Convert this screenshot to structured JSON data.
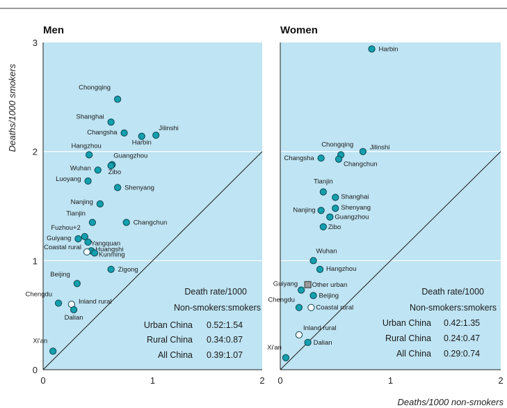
{
  "colors": {
    "panel_bg": "#bfe4f3",
    "marker_fill": "#139fae",
    "marker_stroke": "#0c4650",
    "open_marker_fill": "#ffffff",
    "square_marker_fill": "#9a9a9a",
    "grid": "#ffffff",
    "diagonal": "#1a1a1a",
    "rule": "#333333"
  },
  "chart_data": {
    "type": "scatter",
    "ylabel": "Deaths/1000 smokers",
    "xlabel": "Deaths/1000 non-smokers",
    "xlim": [
      0,
      2
    ],
    "ylim": [
      0,
      3
    ],
    "x_ticks": [
      "0",
      "1",
      "2"
    ],
    "y_ticks": [
      "0",
      "1",
      "2",
      "3"
    ],
    "grid": "horizontal",
    "reference_line": "y = x",
    "panels": [
      {
        "title": "Men",
        "points": [
          {
            "name": "Chongqing",
            "x": 0.68,
            "y": 2.48,
            "marker": "circle"
          },
          {
            "name": "Shanghai",
            "x": 0.62,
            "y": 2.27,
            "marker": "circle"
          },
          {
            "name": "Changsha",
            "x": 0.74,
            "y": 2.17,
            "marker": "circle"
          },
          {
            "name": "Harbin",
            "x": 0.9,
            "y": 2.14,
            "marker": "circle"
          },
          {
            "name": "Jilinshi",
            "x": 1.03,
            "y": 2.15,
            "marker": "circle"
          },
          {
            "name": "Hangzhou",
            "x": 0.42,
            "y": 1.97,
            "marker": "circle"
          },
          {
            "name": "Guangzhou",
            "x": 0.63,
            "y": 1.88,
            "marker": "circle"
          },
          {
            "name": "Wuhan",
            "x": 0.5,
            "y": 1.83,
            "marker": "circle"
          },
          {
            "name": "Zibo",
            "x": 0.62,
            "y": 1.87,
            "marker": "circle"
          },
          {
            "name": "Luoyang",
            "x": 0.41,
            "y": 1.73,
            "marker": "circle"
          },
          {
            "name": "Shenyang",
            "x": 0.68,
            "y": 1.67,
            "marker": "circle"
          },
          {
            "name": "Nanjing",
            "x": 0.52,
            "y": 1.52,
            "marker": "circle"
          },
          {
            "name": "Tianjin",
            "x": 0.45,
            "y": 1.35,
            "marker": "circle"
          },
          {
            "name": "Changchun",
            "x": 0.76,
            "y": 1.35,
            "marker": "circle"
          },
          {
            "name": "Fuzhou+2",
            "x": 0.38,
            "y": 1.22,
            "marker": "circle"
          },
          {
            "name": "Guiyang",
            "x": 0.32,
            "y": 1.2,
            "marker": "circle"
          },
          {
            "name": "Yangquan",
            "x": 0.41,
            "y": 1.17,
            "marker": "circle"
          },
          {
            "name": "Huangshi",
            "x": 0.44,
            "y": 1.09,
            "marker": "circle"
          },
          {
            "name": "Kunming",
            "x": 0.47,
            "y": 1.07,
            "marker": "circle"
          },
          {
            "name": "Coastal rural",
            "x": 0.4,
            "y": 1.08,
            "marker": "open"
          },
          {
            "name": "Zigong",
            "x": 0.62,
            "y": 0.92,
            "marker": "circle"
          },
          {
            "name": "Beijing",
            "x": 0.31,
            "y": 0.79,
            "marker": "circle"
          },
          {
            "name": "Chengdu",
            "x": 0.14,
            "y": 0.61,
            "marker": "circle"
          },
          {
            "name": "Inland rural",
            "x": 0.26,
            "y": 0.6,
            "marker": "open"
          },
          {
            "name": "Dalian",
            "x": 0.28,
            "y": 0.55,
            "marker": "circle"
          },
          {
            "name": "Xi'an",
            "x": 0.09,
            "y": 0.17,
            "marker": "circle"
          }
        ],
        "stats": {
          "header1": "Death rate/1000",
          "header2": "Non-smokers:smokers",
          "rows": [
            {
              "label": "Urban China",
              "value": "0.52:1.54"
            },
            {
              "label": "Rural China",
              "value": "0.34:0.87"
            },
            {
              "label": "All China",
              "value": "0.39:1.07"
            }
          ]
        }
      },
      {
        "title": "Women",
        "points": [
          {
            "name": "Harbin",
            "x": 0.83,
            "y": 2.94,
            "marker": "circle"
          },
          {
            "name": "Chongqing",
            "x": 0.55,
            "y": 1.97,
            "marker": "circle"
          },
          {
            "name": "Jilinshi",
            "x": 0.75,
            "y": 2.0,
            "marker": "circle"
          },
          {
            "name": "Changsha",
            "x": 0.37,
            "y": 1.94,
            "marker": "circle"
          },
          {
            "name": "Changchun",
            "x": 0.53,
            "y": 1.93,
            "marker": "circle"
          },
          {
            "name": "Tianjin",
            "x": 0.39,
            "y": 1.63,
            "marker": "circle"
          },
          {
            "name": "Shanghai",
            "x": 0.5,
            "y": 1.58,
            "marker": "circle"
          },
          {
            "name": "Shenyang",
            "x": 0.5,
            "y": 1.48,
            "marker": "circle"
          },
          {
            "name": "Nanjing",
            "x": 0.37,
            "y": 1.46,
            "marker": "circle"
          },
          {
            "name": "Guangzhou",
            "x": 0.45,
            "y": 1.4,
            "marker": "circle"
          },
          {
            "name": "Zibo",
            "x": 0.39,
            "y": 1.31,
            "marker": "circle"
          },
          {
            "name": "Wuhan",
            "x": 0.3,
            "y": 1.0,
            "marker": "circle"
          },
          {
            "name": "Hangzhou",
            "x": 0.36,
            "y": 0.92,
            "marker": "circle"
          },
          {
            "name": "Guiyang",
            "x": 0.19,
            "y": 0.73,
            "marker": "circle"
          },
          {
            "name": "Other urban",
            "x": 0.25,
            "y": 0.78,
            "marker": "square"
          },
          {
            "name": "Beijing",
            "x": 0.3,
            "y": 0.68,
            "marker": "circle"
          },
          {
            "name": "Chengdu",
            "x": 0.17,
            "y": 0.57,
            "marker": "circle"
          },
          {
            "name": "Coastal rural",
            "x": 0.28,
            "y": 0.57,
            "marker": "open"
          },
          {
            "name": "Inland rural",
            "x": 0.17,
            "y": 0.32,
            "marker": "open"
          },
          {
            "name": "Dalian",
            "x": 0.25,
            "y": 0.25,
            "marker": "circle"
          },
          {
            "name": "Xi'an",
            "x": 0.05,
            "y": 0.11,
            "marker": "circle"
          }
        ],
        "stats": {
          "header1": "Death rate/1000",
          "header2": "Non-smokers:smokers",
          "rows": [
            {
              "label": "Urban China",
              "value": "0.42:1.35"
            },
            {
              "label": "Rural China",
              "value": "0.24:0.47"
            },
            {
              "label": "All China",
              "value": "0.29:0.74"
            }
          ]
        }
      }
    ]
  }
}
